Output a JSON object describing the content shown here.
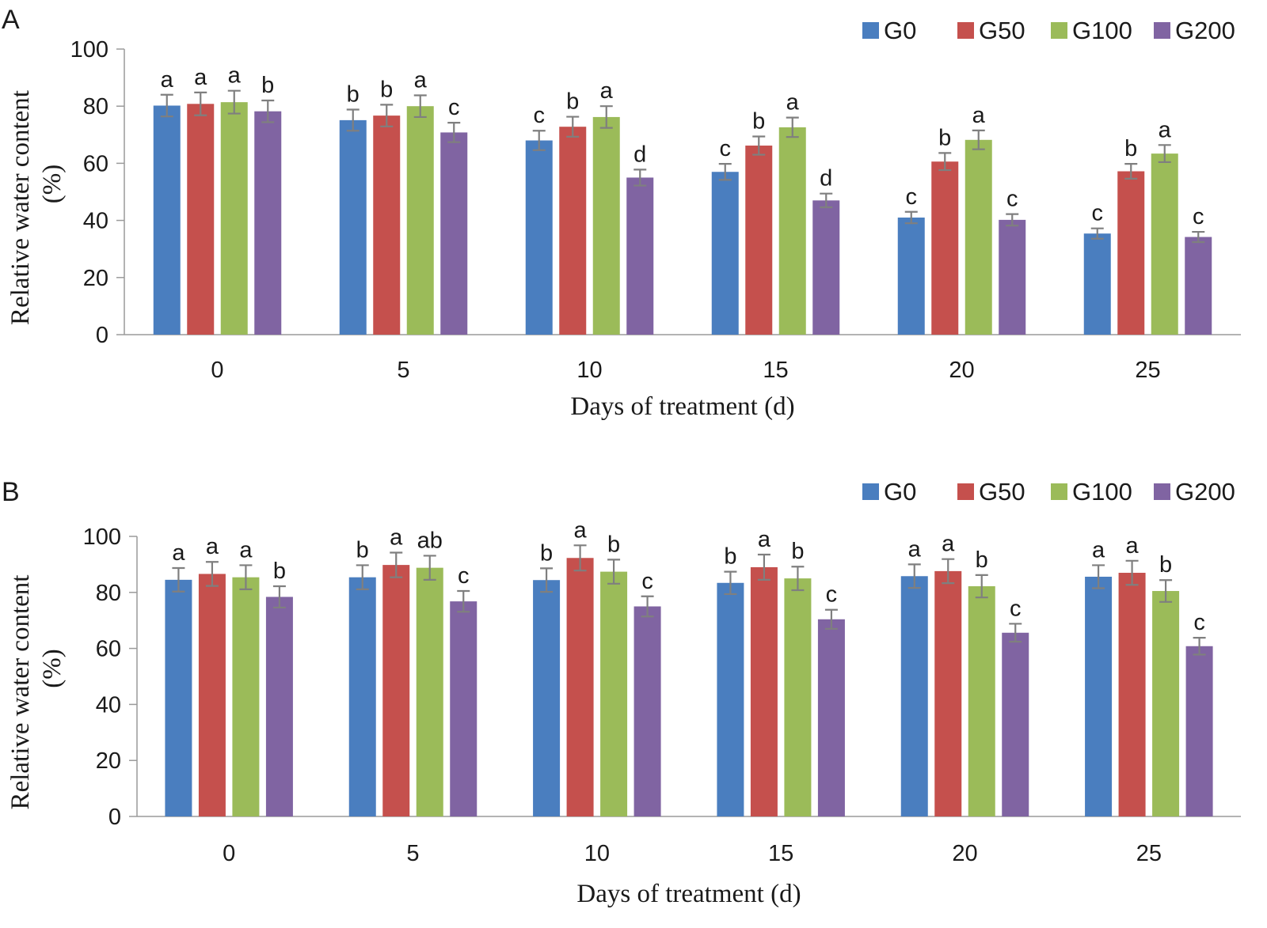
{
  "chart_data": [
    {
      "type": "bar",
      "panel_label": "A",
      "xlabel": "Days of treatment (d)",
      "ylabel_line1": "Relative water content",
      "ylabel_line2": "(%)",
      "ylim": [
        0,
        100
      ],
      "yticks": [
        0,
        20,
        40,
        60,
        80,
        100
      ],
      "categories": [
        "0",
        "5",
        "10",
        "15",
        "20",
        "25"
      ],
      "legend_position": "top-right",
      "grid": false,
      "series": [
        {
          "name": "G0",
          "color": "#4a7ebf",
          "values": [
            80.2,
            75.1,
            68.0,
            57.0,
            41.0,
            35.4
          ],
          "errors": [
            3.8,
            3.7,
            3.4,
            2.8,
            2.0,
            1.8
          ],
          "labels": [
            "a",
            "b",
            "c",
            "c",
            "c",
            "c"
          ]
        },
        {
          "name": "G50",
          "color": "#c5504d",
          "values": [
            80.8,
            76.7,
            72.8,
            66.2,
            60.6,
            57.2
          ],
          "errors": [
            4.0,
            3.8,
            3.5,
            3.2,
            3.0,
            2.6
          ],
          "labels": [
            "a",
            "b",
            "b",
            "b",
            "b",
            "b"
          ]
        },
        {
          "name": "G100",
          "color": "#9bbb59",
          "values": [
            81.4,
            80.0,
            76.2,
            72.6,
            68.2,
            63.4
          ],
          "errors": [
            4.0,
            3.8,
            3.8,
            3.4,
            3.3,
            3.0
          ],
          "labels": [
            "a",
            "a",
            "a",
            "a",
            "a",
            "a"
          ]
        },
        {
          "name": "G200",
          "color": "#8064a2",
          "values": [
            78.2,
            70.8,
            55.0,
            47.0,
            40.2,
            34.2
          ],
          "errors": [
            3.8,
            3.4,
            2.8,
            2.4,
            2.0,
            1.8
          ],
          "labels": [
            "b",
            "c",
            "d",
            "d",
            "c",
            "c"
          ]
        }
      ]
    },
    {
      "type": "bar",
      "panel_label": "B",
      "xlabel": "Days of treatment (d)",
      "ylabel_line1": "Relative water content",
      "ylabel_line2": "(%)",
      "ylim": [
        0,
        100
      ],
      "yticks": [
        0,
        20,
        40,
        60,
        80,
        100
      ],
      "categories": [
        "0",
        "5",
        "10",
        "15",
        "20",
        "25"
      ],
      "legend_position": "top-right",
      "grid": false,
      "series": [
        {
          "name": "G0",
          "color": "#4a7ebf",
          "values": [
            84.5,
            85.4,
            84.4,
            83.4,
            85.8,
            85.6
          ],
          "errors": [
            4.2,
            4.3,
            4.2,
            4.0,
            4.2,
            4.1
          ],
          "labels": [
            "a",
            "b",
            "b",
            "b",
            "a",
            "a"
          ]
        },
        {
          "name": "G50",
          "color": "#c5504d",
          "values": [
            86.6,
            89.8,
            92.3,
            89.0,
            87.6,
            87.0
          ],
          "errors": [
            4.3,
            4.4,
            4.5,
            4.5,
            4.3,
            4.3
          ],
          "labels": [
            "a",
            "a",
            "a",
            "a",
            "a",
            "a"
          ]
        },
        {
          "name": "G100",
          "color": "#9bbb59",
          "values": [
            85.4,
            88.8,
            87.4,
            85.0,
            82.2,
            80.5
          ],
          "errors": [
            4.3,
            4.3,
            4.3,
            4.2,
            4.0,
            3.9
          ],
          "labels": [
            "a",
            "ab",
            "b",
            "b",
            "b",
            "b"
          ]
        },
        {
          "name": "G200",
          "color": "#8064a2",
          "values": [
            78.4,
            76.8,
            75.0,
            70.4,
            65.6,
            60.8
          ],
          "errors": [
            3.8,
            3.7,
            3.6,
            3.4,
            3.2,
            3.0
          ],
          "labels": [
            "b",
            "c",
            "c",
            "c",
            "c",
            "c"
          ]
        }
      ]
    }
  ]
}
